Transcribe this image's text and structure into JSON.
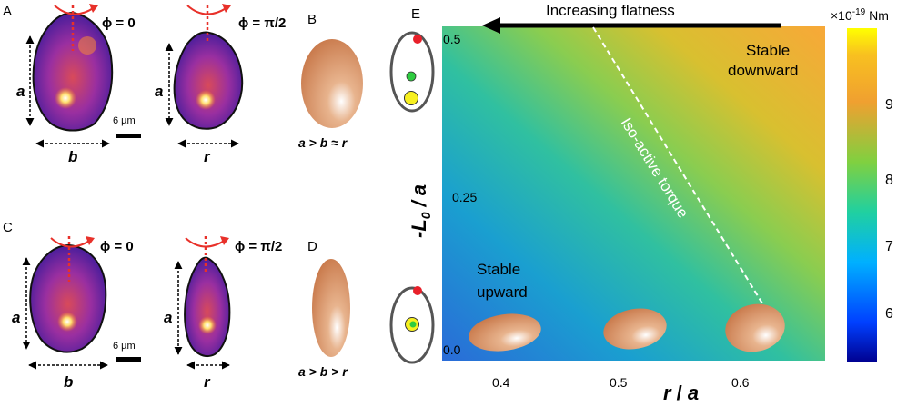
{
  "panels": {
    "A": {
      "letter": "A",
      "phi_left": "ϕ = 0",
      "phi_right": "ϕ = π/2",
      "dim_a_left": "a",
      "dim_b": "b",
      "dim_a_right": "a",
      "dim_r": "r",
      "scale_bar": "6 µm"
    },
    "B": {
      "letter": "B",
      "relation": "a > b ≈ r"
    },
    "C": {
      "letter": "C",
      "phi_left": "ϕ = 0",
      "phi_right": "ϕ = π/2",
      "dim_a_left": "a",
      "dim_b": "b",
      "dim_a_right": "a",
      "dim_r": "r",
      "scale_bar": "6 µm"
    },
    "D": {
      "letter": "D",
      "relation": "a > b > r"
    },
    "E": {
      "letter": "E",
      "arrow_label": "Increasing flatness",
      "stable_downward_1": "Stable",
      "stable_downward_2": "downward",
      "stable_upward_1": "Stable",
      "stable_upward_2": "upward",
      "iso_label": "Iso-active torque",
      "x_title_r": "r",
      "x_title_sep": " / ",
      "x_title_a": "a",
      "y_title_l": "-L",
      "y_title_sub": "0",
      "y_title_rest": " / a",
      "x_ticks": [
        "0.4",
        "0.5",
        "0.6"
      ],
      "y_ticks": [
        "0.5",
        "0.25",
        "0.0"
      ],
      "colorbar_unit_prefix": "×10",
      "colorbar_unit_exp": "-19",
      "colorbar_unit_suffix": " Nm",
      "colorbar_ticks": [
        "9",
        "8",
        "7",
        "6"
      ]
    }
  },
  "colors": {
    "ellipsoid": "#d8956b",
    "red_marker": "#e8202a",
    "green_marker": "#2ecc40",
    "yellow_marker": "#f7f020",
    "rotation_arrow": "#e8312a"
  }
}
